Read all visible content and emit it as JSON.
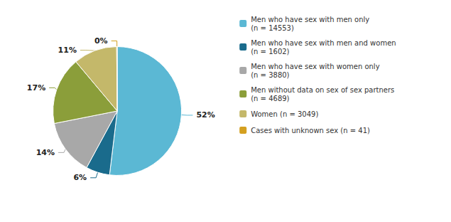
{
  "chart_data": {
    "type": "pie",
    "categories": [
      "Men who have sex with men only\n(n = 14553)",
      "Men who have sex with men and women\n(n = 1602)",
      "Men who have sex with women only\n(n = 3880)",
      "Men without data on sex of sex partners\n(n = 4689)",
      "Women (n = 3049)",
      "Cases with unknown sex (n = 41)"
    ],
    "values": [
      52,
      6,
      14,
      17,
      11,
      0.15
    ],
    "value_labels": [
      "52%",
      "6%",
      "14%",
      "17%",
      "11%",
      "0%"
    ],
    "colors": [
      "#5BB8D4",
      "#1A6B8C",
      "#A8A8A8",
      "#8B9E3A",
      "#C4B86A",
      "#D4A020"
    ],
    "data_labels": true,
    "legend": "right"
  }
}
